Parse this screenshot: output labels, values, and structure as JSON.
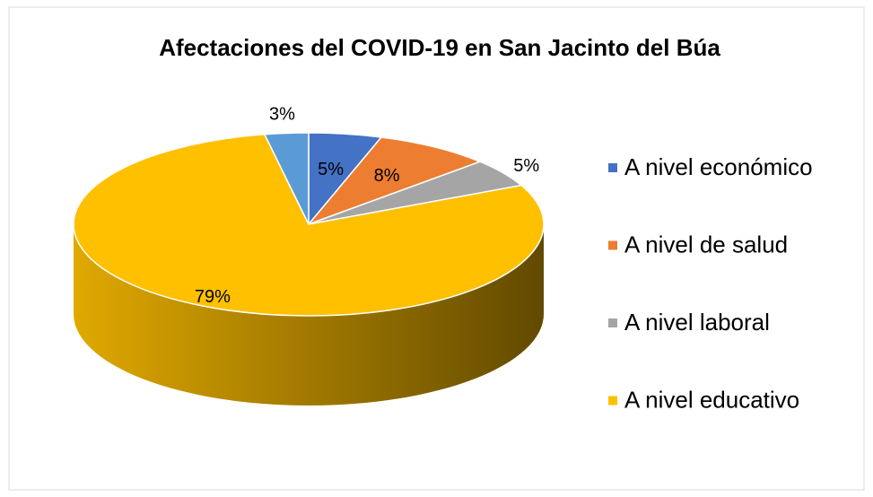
{
  "chart_data": {
    "type": "pie",
    "title": "Afectaciones del COVID-19 en San Jacinto del Búa",
    "categories": [
      "A nivel económico",
      "A nivel de salud",
      "A nivel laboral",
      "A nivel educativo",
      null
    ],
    "values": [
      5,
      8,
      5,
      79,
      3
    ],
    "value_labels": [
      "5%",
      "8%",
      "5%",
      "79%",
      "3%"
    ],
    "colors": [
      "#4472c4",
      "#ed7d31",
      "#a5a5a5",
      "#ffc000",
      "#5b9bd5"
    ],
    "legend": "right"
  }
}
